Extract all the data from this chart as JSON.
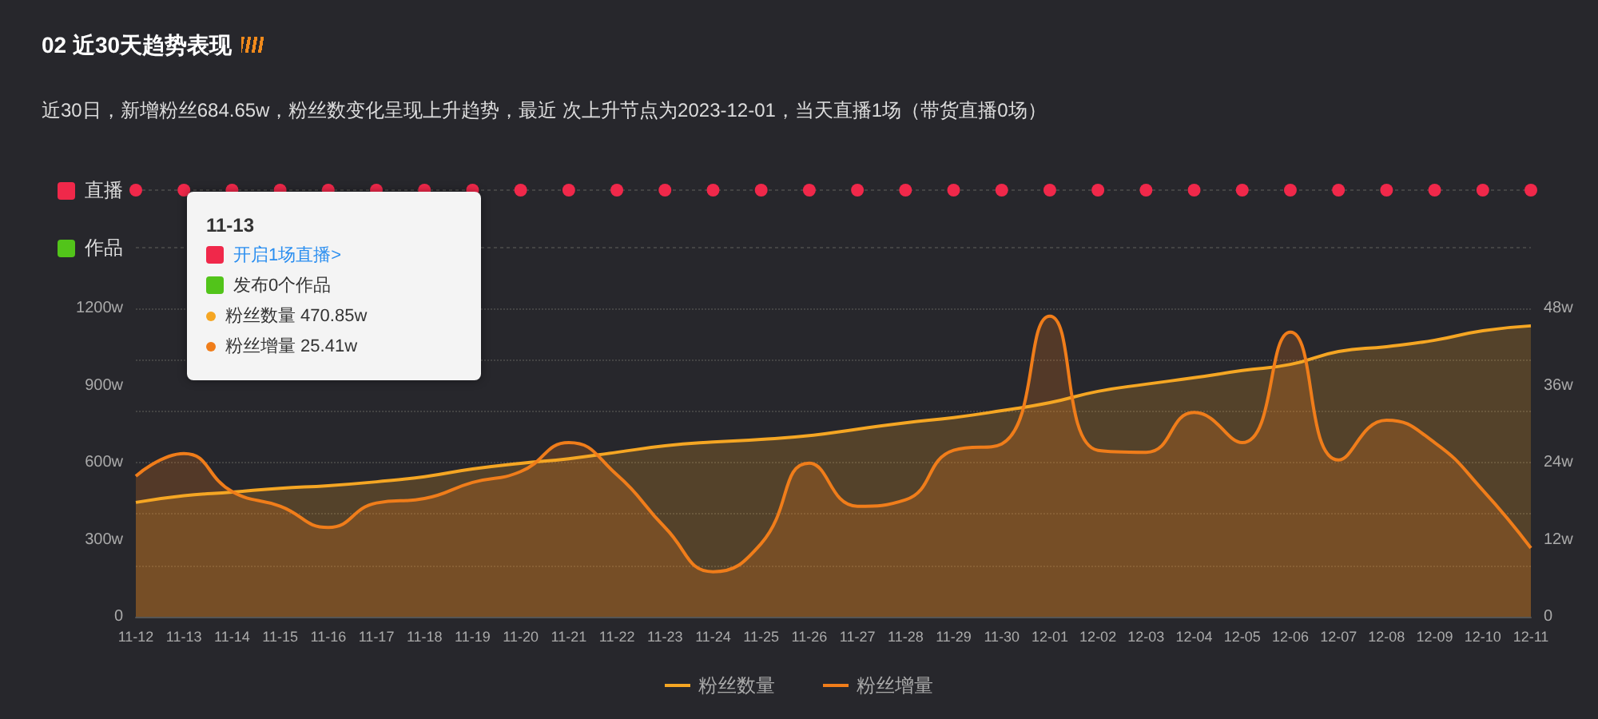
{
  "chart_data": [
    {
      "type": "other",
      "title": "02 近30天趋势表现",
      "subtitle": "近30日，新增粉丝684.65w，粉丝数变化呈现上升趋势，最近 次上升节点为2023-12-01，当天直播1场（带货直播0场）",
      "annotations": [
        "直播",
        "作品"
      ]
    },
    {
      "type": "area",
      "marker": "none",
      "grid": "y",
      "legend": "bottom",
      "categories": [
        "11-12",
        "11-13",
        "11-14",
        "11-15",
        "11-16",
        "11-17",
        "11-18",
        "11-19",
        "11-20",
        "11-21",
        "11-22",
        "11-23",
        "11-24",
        "11-25",
        "11-26",
        "11-27",
        "11-28",
        "11-29",
        "11-30",
        "12-01",
        "12-02",
        "12-03",
        "12-04",
        "12-05",
        "12-06",
        "12-07",
        "12-08",
        "12-09",
        "12-10",
        "12-11"
      ],
      "series": [
        {
          "name": "粉丝数量",
          "color": "#f5a623",
          "values": [
            445,
            470.85,
            485,
            500,
            510,
            525,
            545,
            575,
            597,
            615,
            640,
            665,
            680,
            690,
            705,
            730,
            755,
            775,
            802,
            833,
            877,
            905,
            930,
            958,
            982,
            1032,
            1051,
            1076,
            1113,
            1132
          ]
        },
        {
          "name": "粉丝增量",
          "color": "#f07d1a",
          "axis": "y2",
          "values": [
            21.9,
            25.41,
            19.5,
            17.2,
            13.9,
            17.7,
            18.4,
            20.9,
            22.6,
            27.1,
            22.1,
            13.9,
            7.0,
            11.4,
            23.9,
            17.2,
            18.2,
            25.9,
            26.9,
            46.8,
            25.9,
            25.6,
            31.8,
            27.1,
            44.3,
            24.4,
            30.6,
            27.1,
            19.7,
            10.7
          ]
        }
      ],
      "ylim": [
        0,
        1200
      ],
      "yticks": [
        0,
        {
          "value": 300,
          "label": "300w"
        },
        {
          "value": 600,
          "label": "600w"
        },
        {
          "value": 900,
          "label": "900w"
        },
        {
          "value": 1200,
          "label": "1200w"
        }
      ],
      "y2lim": [
        0,
        48
      ],
      "y2ticks": [
        0,
        {
          "value": 12,
          "label": "12w"
        },
        {
          "value": 24,
          "label": "24w"
        },
        {
          "value": 36,
          "label": "36w"
        },
        {
          "value": 48,
          "label": "48w"
        }
      ],
      "annotations": [
        "11-13",
        "开启1场直播>",
        "发布0个作品",
        "粉丝数量 470.85w",
        "粉丝增量 25.41w"
      ]
    }
  ]
}
